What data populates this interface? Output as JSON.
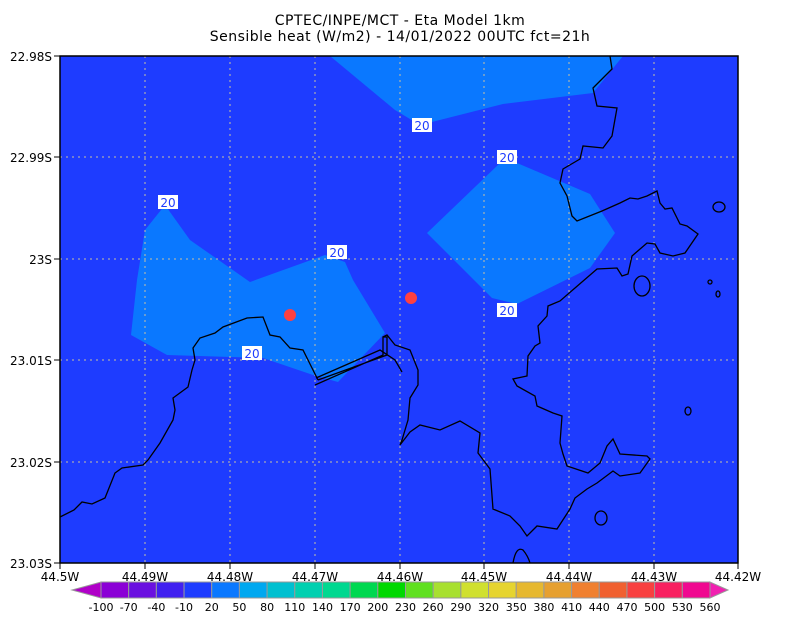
{
  "title": {
    "line1": "CPTEC/INPE/MCT -  Eta Model 1km",
    "line2": "Sensible heat (W/m2) - 14/01/2022 00UTC fct=21h"
  },
  "map": {
    "lat_labels": [
      "22.98S",
      "22.99S",
      "23S",
      "23.01S",
      "23.02S",
      "23.03S"
    ],
    "lon_labels": [
      "44.5W",
      "44.49W",
      "44.48W",
      "44.47W",
      "44.46W",
      "44.45W",
      "44.44W",
      "44.43W",
      "44.42W"
    ],
    "contour_labels": [
      "20",
      "20",
      "20",
      "20",
      "20",
      "20"
    ],
    "background_color": "#1e3cff",
    "shade_color": "#0a78ff",
    "marker_color": "#ff4040",
    "markers": [
      "station-1",
      "station-2"
    ]
  },
  "colorbar": {
    "labels": [
      "-100",
      "-70",
      "-40",
      "-10",
      "20",
      "50",
      "80",
      "110",
      "140",
      "170",
      "200",
      "230",
      "260",
      "290",
      "320",
      "350",
      "380",
      "410",
      "440",
      "470",
      "500",
      "530",
      "560"
    ],
    "colors": [
      "#8b00d6",
      "#6a10e0",
      "#4020f0",
      "#1e3cff",
      "#0a78ff",
      "#00a8f0",
      "#00c0d0",
      "#00d0b0",
      "#00d890",
      "#00d850",
      "#00d800",
      "#60e020",
      "#a8e030",
      "#d0e030",
      "#e6d430",
      "#e6b830",
      "#e6a030",
      "#f08030",
      "#f06030",
      "#f84040",
      "#f82060",
      "#f00890"
    ],
    "low_arrow_color": "#b000c8",
    "high_arrow_color": "#f020b0"
  }
}
